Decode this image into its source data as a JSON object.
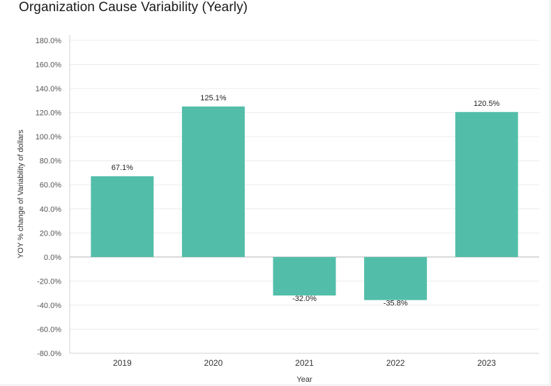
{
  "title": "Organization Cause Variability (Yearly)",
  "chart_data": {
    "type": "bar",
    "title": "Organization Cause Variability (Yearly)",
    "xlabel": "Year",
    "ylabel": "YOY % change of Variability of dollars",
    "categories": [
      "2019",
      "2020",
      "2021",
      "2022",
      "2023"
    ],
    "values": [
      67.1,
      125.1,
      -32.0,
      -35.8,
      120.5
    ],
    "data_labels": [
      "67.1%",
      "125.1%",
      "-32.0%",
      "-35.8%",
      "120.5%"
    ],
    "ylim": [
      -80,
      180
    ],
    "yticks": [
      180,
      160,
      140,
      120,
      100,
      80,
      60,
      40,
      20,
      0,
      -20,
      -40,
      -60,
      -80
    ],
    "ytick_labels": [
      "180.0%",
      "160.0%",
      "140.0%",
      "120.0%",
      "100.0%",
      "80.0%",
      "60.0%",
      "40.0%",
      "20.0%",
      "0.0%",
      "-20.0%",
      "-40.0%",
      "-60.0%",
      "-80.0%"
    ],
    "grid": true,
    "bar_color": "#52bea9"
  }
}
